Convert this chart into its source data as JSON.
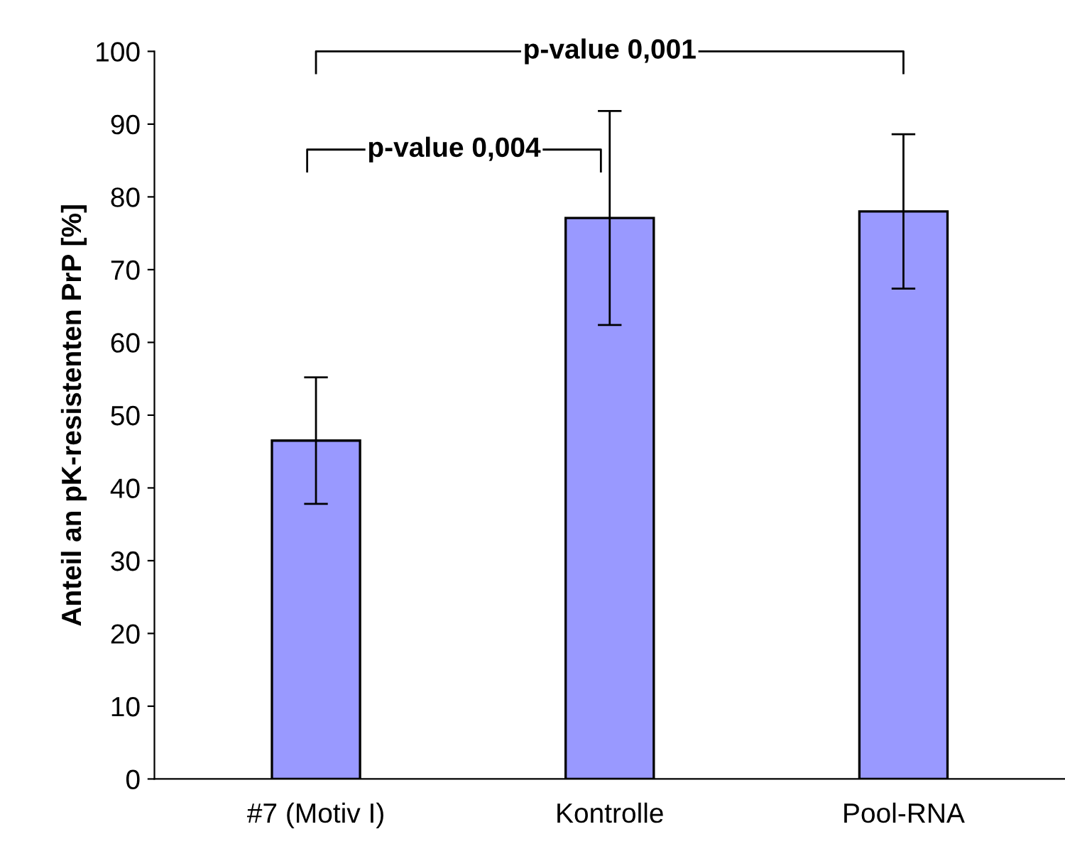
{
  "chart_data": {
    "type": "bar",
    "ylabel": "Anteil an pK-resistenten PrP [%]",
    "categories": [
      "#7 (Motiv I)",
      "Kontrolle",
      "Pool-RNA"
    ],
    "values": [
      46.5,
      77.1,
      78.0
    ],
    "errors": [
      8.7,
      14.7,
      10.6
    ],
    "color": "#9999ff",
    "ylim": [
      0,
      100
    ],
    "yticks": [
      0,
      10,
      20,
      30,
      40,
      50,
      60,
      70,
      80,
      90,
      100
    ],
    "annotations": [
      "p-value 0,004",
      "p-value 0,001"
    ]
  }
}
